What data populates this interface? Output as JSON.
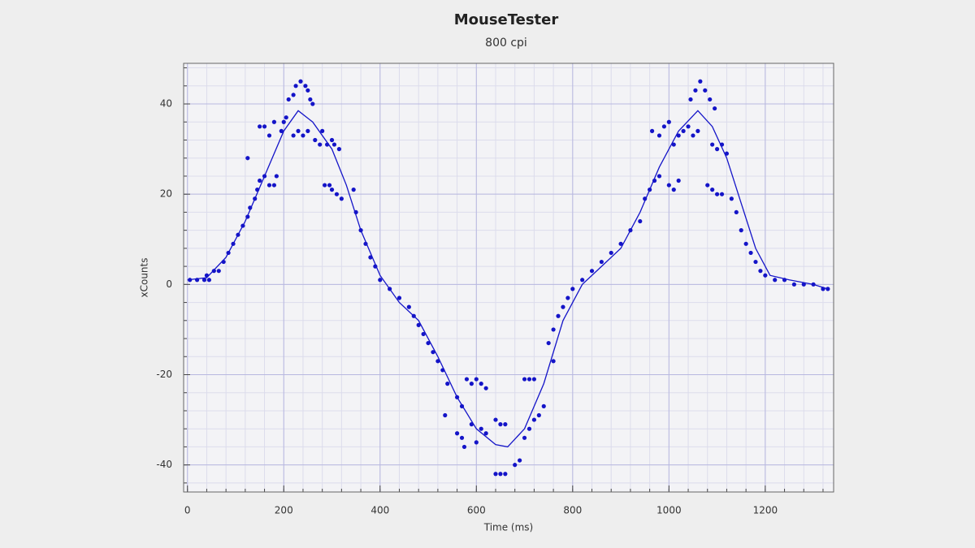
{
  "chart_data": {
    "type": "scatter",
    "title": "MouseTester",
    "subtitle": "800 cpi",
    "x_label": "Time (ms)",
    "y_label": "xCounts",
    "xlim": [
      -8,
      1342
    ],
    "ylim": [
      -46,
      49
    ],
    "xticks": [
      0,
      200,
      400,
      600,
      800,
      1000,
      1200
    ],
    "yticks": [
      -40,
      -20,
      0,
      20,
      40
    ],
    "grid": true,
    "series": [
      {
        "mode": "markers",
        "color": "#1414c8",
        "x": [
          5,
          20,
          35,
          40,
          45,
          55,
          65,
          75,
          85,
          95,
          105,
          115,
          125,
          130,
          140,
          145,
          150,
          160,
          170,
          180,
          185,
          125,
          150,
          160,
          170,
          180,
          195,
          200,
          205,
          210,
          220,
          225,
          235,
          245,
          250,
          255,
          260,
          220,
          230,
          240,
          250,
          265,
          275,
          280,
          290,
          300,
          305,
          315,
          285,
          295,
          300,
          310,
          320,
          345,
          350,
          360,
          370,
          380,
          390,
          400,
          420,
          440,
          460,
          470,
          480,
          490,
          500,
          510,
          520,
          530,
          540,
          535,
          560,
          570,
          580,
          590,
          600,
          610,
          620,
          560,
          570,
          575,
          590,
          600,
          610,
          620,
          640,
          650,
          660,
          640,
          650,
          660,
          680,
          690,
          700,
          710,
          720,
          730,
          700,
          710,
          720,
          740,
          760,
          750,
          760,
          770,
          780,
          790,
          800,
          820,
          840,
          860,
          880,
          900,
          920,
          940,
          950,
          960,
          970,
          980,
          1000,
          1010,
          1020,
          965,
          980,
          990,
          1000,
          1010,
          1020,
          1030,
          1040,
          1050,
          1060,
          1045,
          1055,
          1065,
          1075,
          1085,
          1095,
          1090,
          1100,
          1110,
          1120,
          1080,
          1090,
          1100,
          1110,
          1130,
          1140,
          1150,
          1160,
          1170,
          1180,
          1190,
          1200,
          1220,
          1240,
          1260,
          1280,
          1300,
          1320,
          1330
        ],
        "values": [
          1,
          1,
          1,
          2,
          1,
          3,
          3,
          5,
          7,
          9,
          11,
          13,
          15,
          17,
          19,
          21,
          23,
          24,
          22,
          22,
          24,
          28,
          35,
          35,
          33,
          36,
          34,
          36,
          37,
          41,
          42,
          44,
          45,
          44,
          43,
          41,
          40,
          33,
          34,
          33,
          34,
          32,
          31,
          34,
          31,
          32,
          31,
          30,
          22,
          22,
          21,
          20,
          19,
          21,
          16,
          12,
          9,
          6,
          4,
          1,
          -1,
          -3,
          -5,
          -7,
          -9,
          -11,
          -13,
          -15,
          -17,
          -19,
          -22,
          -29,
          -25,
          -27,
          -21,
          -22,
          -21,
          -22,
          -23,
          -33,
          -34,
          -36,
          -31,
          -35,
          -32,
          -33,
          -30,
          -31,
          -31,
          -42,
          -42,
          -42,
          -40,
          -39,
          -34,
          -32,
          -30,
          -29,
          -21,
          -21,
          -21,
          -27,
          -17,
          -13,
          -10,
          -7,
          -5,
          -3,
          -1,
          1,
          3,
          5,
          7,
          9,
          12,
          14,
          19,
          21,
          23,
          24,
          22,
          21,
          23,
          34,
          33,
          35,
          36,
          31,
          33,
          34,
          35,
          33,
          34,
          41,
          43,
          45,
          43,
          41,
          39,
          31,
          30,
          31,
          29,
          22,
          21,
          20,
          20,
          19,
          16,
          12,
          9,
          7,
          5,
          3,
          2,
          1,
          1,
          0,
          0,
          0,
          -1,
          -1
        ]
      },
      {
        "mode": "line",
        "color": "#1414c8",
        "x": [
          0,
          40,
          80,
          120,
          160,
          200,
          230,
          260,
          300,
          330,
          360,
          400,
          440,
          480,
          520,
          560,
          600,
          640,
          665,
          700,
          740,
          780,
          820,
          860,
          900,
          940,
          980,
          1020,
          1060,
          1090,
          1120,
          1150,
          1180,
          1210,
          1250,
          1300,
          1330
        ],
        "values": [
          1,
          1.5,
          6,
          14,
          24,
          34,
          38.5,
          36,
          30,
          22,
          12,
          2,
          -4,
          -8,
          -16,
          -25,
          -32,
          -35.5,
          -36,
          -32,
          -22,
          -8,
          0,
          4,
          8,
          16,
          26,
          34,
          38.5,
          35,
          28,
          18,
          8,
          2,
          1,
          0,
          -1
        ]
      }
    ]
  }
}
